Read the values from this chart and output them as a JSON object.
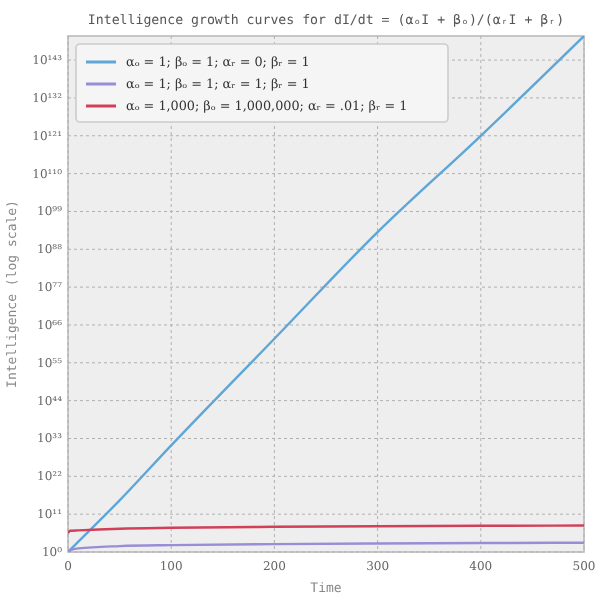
{
  "chart_data": {
    "type": "line",
    "title": "Intelligence growth curves for dI/dt = (αₒI + βₒ)/(αᵣI + βᵣ)",
    "xlabel": "Time",
    "ylabel": "Intelligence (log scale)",
    "log": "y",
    "grid": true,
    "legend": "top left",
    "xlim": [
      0,
      500
    ],
    "xticks": [
      0,
      100,
      200,
      300,
      400,
      500
    ],
    "ylim": [
      1,
      1e+150
    ],
    "yticks": [
      {
        "value": 1,
        "label": "10⁰"
      },
      {
        "value": 100000000000.0,
        "label": "10¹¹"
      },
      {
        "value": 1e+22,
        "label": "10²²"
      },
      {
        "value": 1e+33,
        "label": "10³³"
      },
      {
        "value": 1e+44,
        "label": "10⁴⁴"
      },
      {
        "value": 1e+55,
        "label": "10⁵⁵"
      },
      {
        "value": 1e+66,
        "label": "10⁶⁶"
      },
      {
        "value": 1e+77,
        "label": "10⁷⁷"
      },
      {
        "value": 1e+88,
        "label": "10⁸⁸"
      },
      {
        "value": 1e+99,
        "label": "10⁹⁹"
      },
      {
        "value": 1e+110,
        "label": "10¹¹⁰"
      },
      {
        "value": 1e+121,
        "label": "10¹²¹"
      },
      {
        "value": 1e+132,
        "label": "10¹³²"
      },
      {
        "value": 1e+143,
        "label": "10¹⁴³"
      }
    ],
    "x": [
      0,
      2,
      10,
      50,
      100,
      200,
      300,
      400,
      500
    ],
    "series": [
      {
        "name": "αₒ = 1; βₒ = 1; αᵣ = 0; βᵣ = 1",
        "color": "#5fa6d6",
        "values": [
          1,
          4,
          1000.0,
          1000000000000000.0,
          1e+31,
          1e+62,
          1e+93,
          1e+121,
          1e+150
        ]
      },
      {
        "name": "αₒ = 1; βₒ = 1; αᵣ = 1; βᵣ = 1",
        "color": "#988ed5",
        "values": [
          1,
          3,
          11,
          51,
          101,
          201,
          301,
          401,
          501
        ]
      },
      {
        "name": "αₒ = 1,000; βₒ = 1,000,000; αᵣ = .01; βᵣ = 1",
        "color": "#d0405a",
        "values": [
          300000,
          1500000,
          2000000,
          6000000,
          11000000,
          21000000,
          31000000,
          41000000,
          51000000
        ]
      }
    ]
  }
}
